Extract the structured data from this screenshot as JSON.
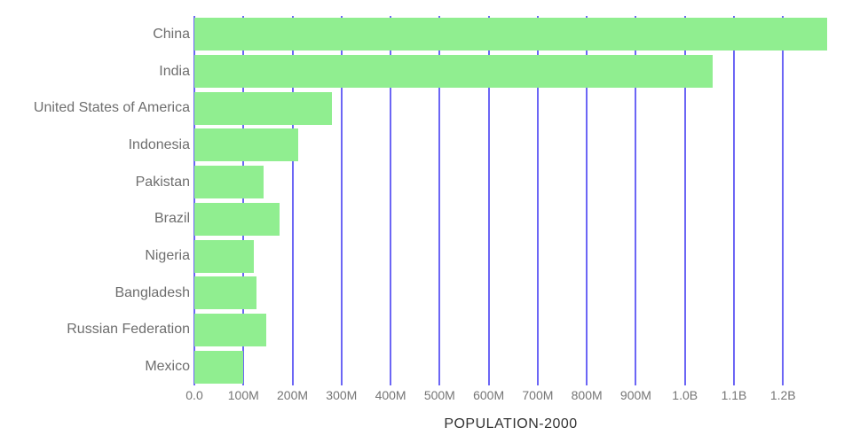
{
  "chart_data": {
    "type": "bar",
    "orientation": "horizontal",
    "title": "POPULATION-2000",
    "categories": [
      "China",
      "India",
      "United States of America",
      "Indonesia",
      "Pakistan",
      "Brazil",
      "Nigeria",
      "Bangladesh",
      "Russian Federation",
      "Mexico"
    ],
    "values": [
      1290000000,
      1056000000,
      281000000,
      212000000,
      141000000,
      174000000,
      121000000,
      126000000,
      147000000,
      100000000
    ],
    "xlabel": "POPULATION-2000",
    "ylabel": "",
    "xlim": [
      0,
      1290000000
    ],
    "x_ticks": [
      {
        "value": 0,
        "label": "0.0"
      },
      {
        "value": 100000000,
        "label": "100M"
      },
      {
        "value": 200000000,
        "label": "200M"
      },
      {
        "value": 300000000,
        "label": "300M"
      },
      {
        "value": 400000000,
        "label": "400M"
      },
      {
        "value": 500000000,
        "label": "500M"
      },
      {
        "value": 600000000,
        "label": "600M"
      },
      {
        "value": 700000000,
        "label": "700M"
      },
      {
        "value": 800000000,
        "label": "800M"
      },
      {
        "value": 900000000,
        "label": "900M"
      },
      {
        "value": 1000000000,
        "label": "1.0B"
      },
      {
        "value": 1100000000,
        "label": "1.1B"
      },
      {
        "value": 1200000000,
        "label": "1.2B"
      }
    ],
    "grid": true,
    "legend": "none",
    "colors": {
      "bar": "#90EE90",
      "gridline": "#6C66F5",
      "axis_text": "#757575",
      "category_text": "#6E6E6E",
      "title_text": "#333333",
      "background": "#FFFFFF"
    }
  }
}
